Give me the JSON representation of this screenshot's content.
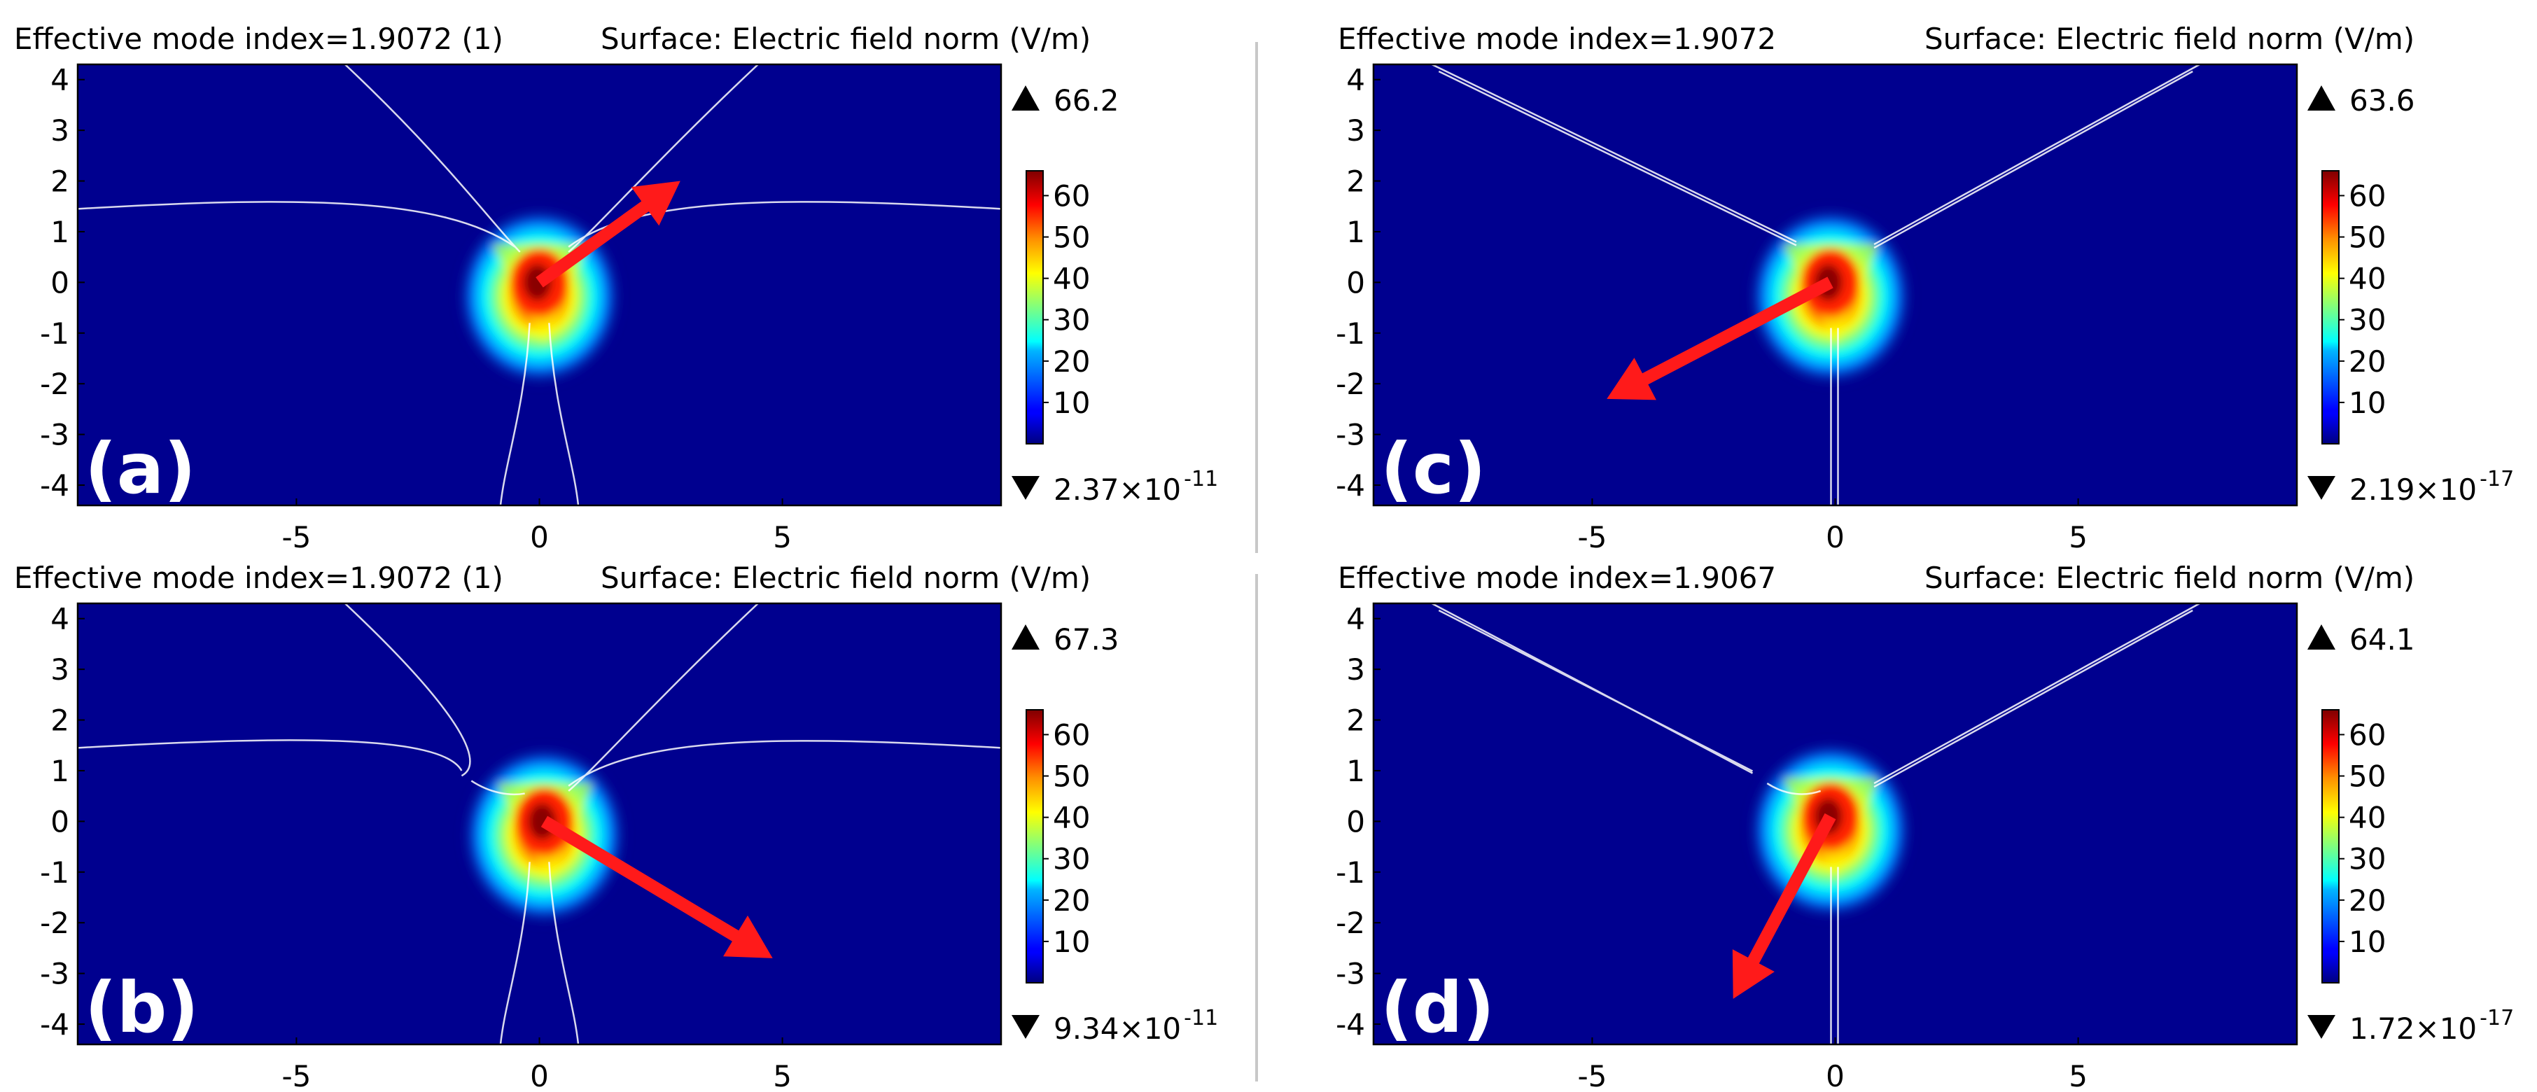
{
  "figure": {
    "color_min": 0,
    "color_max": 66
  },
  "chart_data": [
    {
      "type": "heatmap",
      "panel_label": "(a)",
      "title_left": "Effective mode index=1.9072 (1)",
      "title_right": "Surface: Electric field norm (V/m)",
      "x_ticks": [
        "-5",
        "0",
        "5"
      ],
      "y_ticks": [
        "4",
        "3",
        "2",
        "1",
        "0",
        "-1",
        "-2",
        "-3",
        "-4"
      ],
      "xlim": [
        -9.5,
        9.5
      ],
      "ylim": [
        -4.4,
        4.3
      ],
      "colorbar_ticks": [
        "60",
        "50",
        "40",
        "30",
        "20",
        "10"
      ],
      "color_max_label": "66.2",
      "color_min_label": "2.37×10",
      "color_min_exponent": "-11",
      "hotspot": {
        "x": 0.0,
        "y": 0.0,
        "peak": 66.2
      },
      "arrow": {
        "x0": 0.0,
        "y0": 0.0,
        "x1": 2.9,
        "y1": 2.0
      },
      "geometry": "curved"
    },
    {
      "type": "heatmap",
      "panel_label": "(c)",
      "title_left": "Effective mode index=1.9072",
      "title_right": "Surface: Electric field norm (V/m)",
      "x_ticks": [
        "-5",
        "0",
        "5"
      ],
      "y_ticks": [
        "4",
        "3",
        "2",
        "1",
        "0",
        "-1",
        "-2",
        "-3",
        "-4"
      ],
      "xlim": [
        -9.5,
        9.5
      ],
      "ylim": [
        -4.4,
        4.3
      ],
      "colorbar_ticks": [
        "60",
        "50",
        "40",
        "30",
        "20",
        "10"
      ],
      "color_max_label": "63.6",
      "color_min_label": "2.19×10",
      "color_min_exponent": "-17",
      "hotspot": {
        "x": -0.1,
        "y": 0.0,
        "peak": 63.6
      },
      "arrow": {
        "x0": -0.1,
        "y0": 0.0,
        "x1": -4.7,
        "y1": -2.3
      },
      "geometry": "straight"
    },
    {
      "type": "heatmap",
      "panel_label": "(b)",
      "title_left": "Effective mode index=1.9072 (1)",
      "title_right": "Surface: Electric field norm (V/m)",
      "x_ticks": [
        "-5",
        "0",
        "5"
      ],
      "y_ticks": [
        "4",
        "3",
        "2",
        "1",
        "0",
        "-1",
        "-2",
        "-3",
        "-4"
      ],
      "xlim": [
        -9.5,
        9.5
      ],
      "ylim": [
        -4.4,
        4.3
      ],
      "colorbar_ticks": [
        "60",
        "50",
        "40",
        "30",
        "20",
        "10"
      ],
      "color_max_label": "67.3",
      "color_min_label": "9.34×10",
      "color_min_exponent": "-11",
      "hotspot": {
        "x": 0.1,
        "y": 0.0,
        "peak": 67.3
      },
      "arrow": {
        "x0": 0.1,
        "y0": 0.0,
        "x1": 4.8,
        "y1": -2.7
      },
      "geometry": "curved-gap"
    },
    {
      "type": "heatmap",
      "panel_label": "(d)",
      "title_left": "Effective mode index=1.9067",
      "title_right": "Surface: Electric field norm (V/m)",
      "x_ticks": [
        "-5",
        "0",
        "5"
      ],
      "y_ticks": [
        "4",
        "3",
        "2",
        "1",
        "0",
        "-1",
        "-2",
        "-3",
        "-4"
      ],
      "xlim": [
        -9.5,
        9.5
      ],
      "ylim": [
        -4.4,
        4.3
      ],
      "colorbar_ticks": [
        "60",
        "50",
        "40",
        "30",
        "20",
        "10"
      ],
      "color_max_label": "64.1",
      "color_min_label": "1.72×10",
      "color_min_exponent": "-17",
      "hotspot": {
        "x": -0.1,
        "y": 0.1,
        "peak": 64.1
      },
      "arrow": {
        "x0": -0.1,
        "y0": 0.1,
        "x1": -2.1,
        "y1": -3.5
      },
      "geometry": "straight-gap"
    }
  ]
}
